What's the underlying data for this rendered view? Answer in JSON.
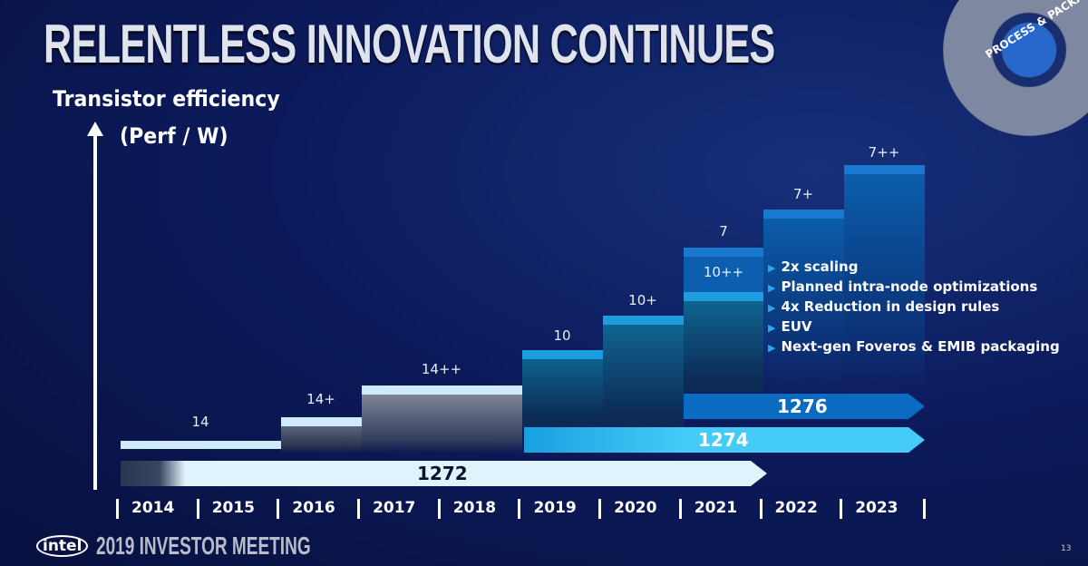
{
  "title": "RELENTLESS INNOVATION CONTINUES",
  "badge": "PROCESS & PACKAGING",
  "y_axis": {
    "label_line1": "Transistor efficiency",
    "label_line2": "(Perf / W)"
  },
  "nodes": [
    {
      "label": "14",
      "years": "2014-2015"
    },
    {
      "label": "14+",
      "years": "2016"
    },
    {
      "label": "14++",
      "years": "2017-2018"
    },
    {
      "label": "10",
      "years": "2019"
    },
    {
      "label": "10+",
      "years": "2020"
    },
    {
      "label": "10++",
      "years": "2021"
    },
    {
      "label": "7",
      "years": "2021"
    },
    {
      "label": "7+",
      "years": "2022"
    },
    {
      "label": "7++",
      "years": "2023"
    }
  ],
  "processes": [
    {
      "label": "1272"
    },
    {
      "label": "1274"
    },
    {
      "label": "1276"
    }
  ],
  "bullets": [
    "2x scaling",
    "Planned intra-node optimizations",
    "4x Reduction in design rules",
    "EUV",
    "Next-gen Foveros & EMIB packaging"
  ],
  "years": [
    "2014",
    "2015",
    "2016",
    "2017",
    "2018",
    "2019",
    "2020",
    "2021",
    "2022",
    "2023"
  ],
  "footer": {
    "logo": "intel",
    "event": "2019 INVESTOR MEETING",
    "page": "13"
  },
  "colors": {
    "light": "#cfeaf8",
    "cyan": "#41c8f5",
    "blue": "#0b6ac2",
    "band": "#1c9de0"
  }
}
